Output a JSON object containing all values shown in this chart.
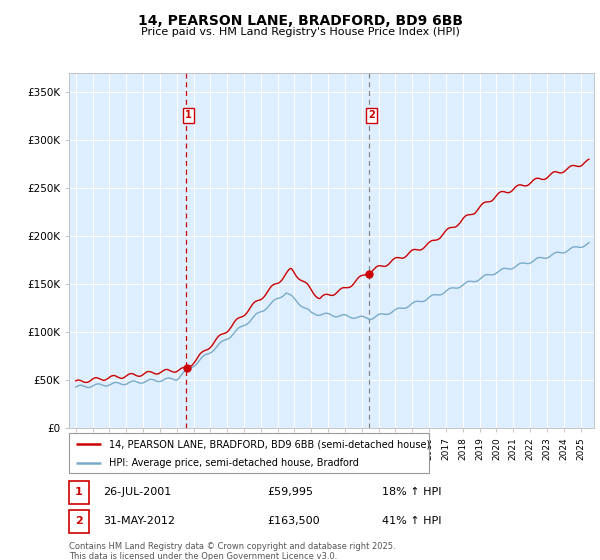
{
  "title": "14, PEARSON LANE, BRADFORD, BD9 6BB",
  "subtitle": "Price paid vs. HM Land Registry's House Price Index (HPI)",
  "legend_line1": "14, PEARSON LANE, BRADFORD, BD9 6BB (semi-detached house)",
  "legend_line2": "HPI: Average price, semi-detached house, Bradford",
  "footer": "Contains HM Land Registry data © Crown copyright and database right 2025.\nThis data is licensed under the Open Government Licence v3.0.",
  "sale1_date": "26-JUL-2001",
  "sale1_price": "£59,995",
  "sale1_hpi": "18% ↑ HPI",
  "sale2_date": "31-MAY-2012",
  "sale2_price": "£163,500",
  "sale2_hpi": "41% ↑ HPI",
  "ylabel_ticks": [
    "£0",
    "£50K",
    "£100K",
    "£150K",
    "£200K",
    "£250K",
    "£300K",
    "£350K"
  ],
  "ytick_vals": [
    0,
    50000,
    100000,
    150000,
    200000,
    250000,
    300000,
    350000
  ],
  "ylim": [
    0,
    370000
  ],
  "xlim_left": 1994.6,
  "xlim_right": 2025.8,
  "red_color": "#cc0000",
  "blue_color": "#7aaac8",
  "vline1_color": "#cc0000",
  "vline2_color": "#888888",
  "sale1_x": 2001.55,
  "sale2_x": 2012.42,
  "plot_bg_color": "#ddeeff",
  "grid_color": "#ffffff",
  "sale1_y": 59995,
  "sale2_y": 163500
}
